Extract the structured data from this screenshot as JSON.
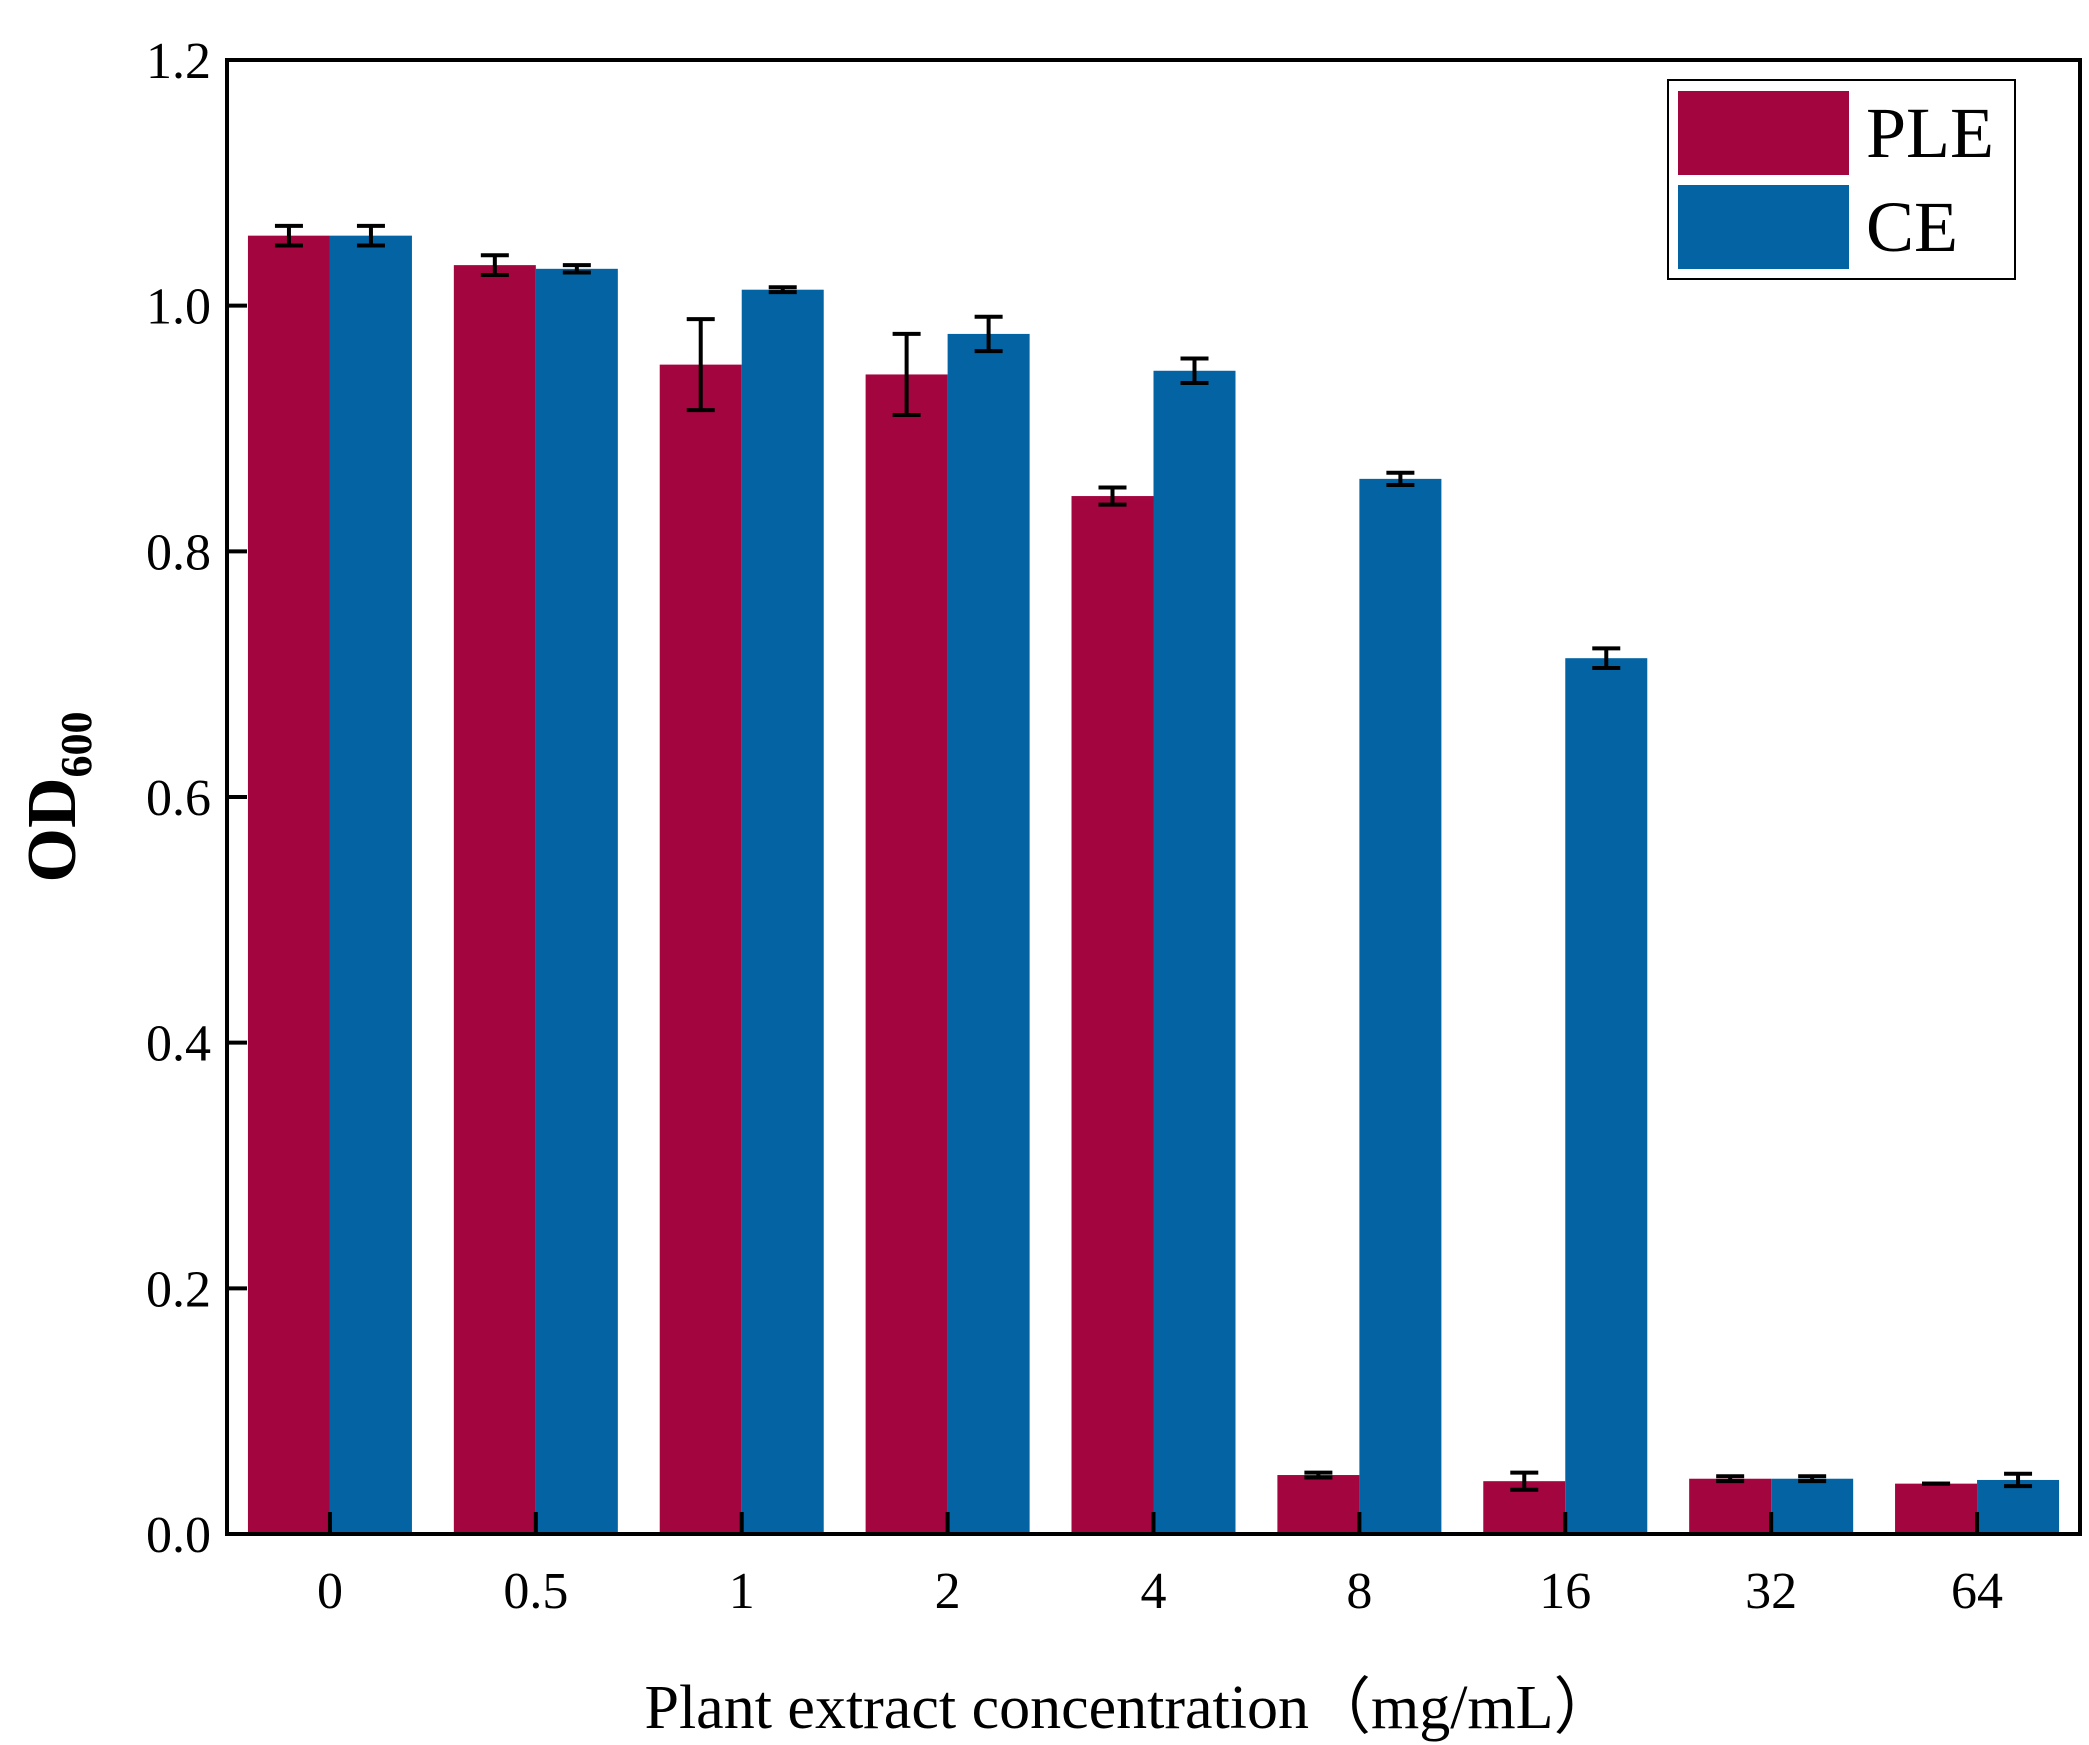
{
  "chart_data": {
    "type": "bar",
    "title": "",
    "xlabel": "Plant extract concentration（mg/mL）",
    "ylabel": "OD",
    "ylabel_subscript": "600",
    "ylim": [
      0,
      1.2
    ],
    "yticks": [
      "0.0",
      "0.2",
      "0.4",
      "0.6",
      "0.8",
      "1.0",
      "1.2"
    ],
    "categories": [
      "0",
      "0.5",
      "1",
      "2",
      "4",
      "8",
      "16",
      "32",
      "64"
    ],
    "series": [
      {
        "name": "PLE",
        "color": "#A3053F",
        "values": [
          1.057,
          1.033,
          0.952,
          0.944,
          0.845,
          0.048,
          0.043,
          0.045,
          0.041
        ],
        "errors": [
          0.008,
          0.008,
          0.037,
          0.033,
          0.007,
          0.002,
          0.007,
          0.002,
          0.0
        ]
      },
      {
        "name": "CE",
        "color": "#0363A3",
        "values": [
          1.057,
          1.03,
          1.013,
          0.977,
          0.947,
          0.859,
          0.713,
          0.045,
          0.044
        ],
        "errors": [
          0.008,
          0.003,
          0.002,
          0.014,
          0.01,
          0.005,
          0.008,
          0.002,
          0.005
        ]
      }
    ],
    "legend_position": "top-right",
    "grid": false
  }
}
